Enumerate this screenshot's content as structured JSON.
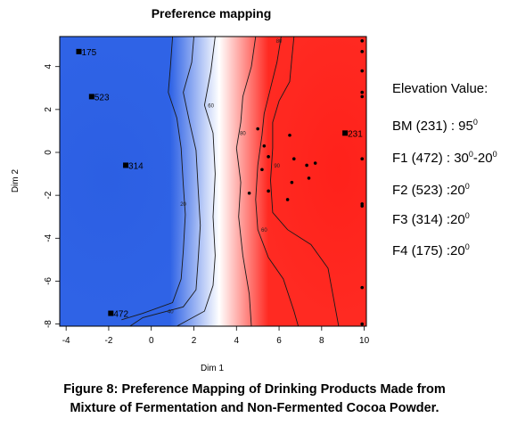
{
  "chart_data": {
    "type": "heatmap",
    "title": "Preference mapping",
    "xlabel": "Dim 1",
    "ylabel": "Dim 2",
    "xlim": [
      -4.3,
      10.1
    ],
    "ylim": [
      -8.1,
      5.4
    ],
    "x_ticks": [
      "-4",
      "-2",
      "0",
      "2",
      "4",
      "6",
      "8",
      "10"
    ],
    "x_tick_values": [
      -4,
      -2,
      0,
      2,
      4,
      6,
      8,
      10
    ],
    "y_ticks": [
      "-8",
      "-6",
      "-4",
      "-2",
      "0",
      "2",
      "4"
    ],
    "y_tick_values": [
      -8,
      -6,
      -4,
      -2,
      0,
      2,
      4
    ],
    "color_low": "#2f63e6",
    "color_mid": "#ffffff",
    "color_high": "#ff2a22",
    "contour_labels": [
      {
        "text": "20",
        "x": 1.5,
        "y": -2.5
      },
      {
        "text": "40",
        "x": 0.9,
        "y": -7.5
      },
      {
        "text": "60",
        "x": 2.8,
        "y": 2.1
      },
      {
        "text": "80",
        "x": 6.0,
        "y": 5.1
      },
      {
        "text": "80",
        "x": 4.3,
        "y": 0.8
      },
      {
        "text": "90",
        "x": 5.9,
        "y": -0.7
      },
      {
        "text": "60",
        "x": 5.3,
        "y": -3.7
      }
    ],
    "products": [
      {
        "label": "175",
        "x": -3.4,
        "y": 4.7
      },
      {
        "label": "523",
        "x": -2.8,
        "y": 2.6
      },
      {
        "label": "314",
        "x": -1.2,
        "y": -0.6
      },
      {
        "label": "472",
        "x": -1.9,
        "y": -7.5
      },
      {
        "label": "231",
        "x": 9.1,
        "y": 0.9
      }
    ],
    "consumers": [
      {
        "x": 5.0,
        "y": 1.1
      },
      {
        "x": 5.3,
        "y": 0.3
      },
      {
        "x": 5.5,
        "y": -0.2
      },
      {
        "x": 5.2,
        "y": -0.8
      },
      {
        "x": 6.5,
        "y": 0.8
      },
      {
        "x": 6.7,
        "y": -0.3
      },
      {
        "x": 7.3,
        "y": -0.6
      },
      {
        "x": 7.7,
        "y": -0.5
      },
      {
        "x": 7.4,
        "y": -1.2
      },
      {
        "x": 6.6,
        "y": -1.4
      },
      {
        "x": 4.6,
        "y": -1.9
      },
      {
        "x": 5.5,
        "y": -1.8
      },
      {
        "x": 6.4,
        "y": -2.2
      },
      {
        "x": 9.9,
        "y": 5.2
      },
      {
        "x": 9.9,
        "y": 4.7
      },
      {
        "x": 9.9,
        "y": 3.8
      },
      {
        "x": 9.9,
        "y": 2.8
      },
      {
        "x": 9.9,
        "y": 2.6
      },
      {
        "x": 9.9,
        "y": -0.3
      },
      {
        "x": 9.9,
        "y": -2.4
      },
      {
        "x": 9.9,
        "y": -2.5
      },
      {
        "x": 9.9,
        "y": -6.3
      },
      {
        "x": 9.9,
        "y": -8.0
      }
    ],
    "contours": [
      [
        [
          1.0,
          5.4
        ],
        [
          0.9,
          4.0
        ],
        [
          0.8,
          2.8
        ],
        [
          1.2,
          1.6
        ],
        [
          1.4,
          0.2
        ],
        [
          1.5,
          -1.5
        ],
        [
          1.6,
          -2.9
        ],
        [
          1.5,
          -4.6
        ],
        [
          1.4,
          -5.9
        ],
        [
          1.0,
          -7.0
        ],
        [
          -0.4,
          -7.5
        ],
        [
          -1.4,
          -7.8
        ]
      ],
      [
        [
          2.0,
          5.4
        ],
        [
          1.9,
          4.2
        ],
        [
          1.5,
          2.8
        ],
        [
          1.8,
          1.4
        ],
        [
          2.1,
          0.1
        ],
        [
          2.2,
          -1.7
        ],
        [
          2.3,
          -3.4
        ],
        [
          2.2,
          -5.0
        ],
        [
          2.1,
          -6.4
        ],
        [
          1.5,
          -7.2
        ],
        [
          -0.4,
          -7.7
        ],
        [
          -1.0,
          -8.1
        ]
      ],
      [
        [
          3.0,
          5.4
        ],
        [
          2.8,
          3.8
        ],
        [
          2.5,
          2.2
        ],
        [
          2.9,
          0.9
        ],
        [
          3.0,
          -1.0
        ],
        [
          2.9,
          -3.0
        ],
        [
          3.0,
          -4.8
        ],
        [
          2.9,
          -6.2
        ],
        [
          2.5,
          -7.4
        ],
        [
          1.2,
          -8.1
        ]
      ],
      [
        [
          4.9,
          5.4
        ],
        [
          4.7,
          4.0
        ],
        [
          4.3,
          2.6
        ],
        [
          4.2,
          1.4
        ],
        [
          4.0,
          0.2
        ],
        [
          4.2,
          -1.4
        ],
        [
          4.1,
          -3.0
        ],
        [
          4.3,
          -4.8
        ],
        [
          4.6,
          -6.6
        ],
        [
          4.7,
          -8.1
        ]
      ],
      [
        [
          6.1,
          5.4
        ],
        [
          5.9,
          4.2
        ],
        [
          5.6,
          3.0
        ],
        [
          5.3,
          1.8
        ],
        [
          5.2,
          0.8
        ],
        [
          5.0,
          -0.6
        ],
        [
          4.9,
          -2.2
        ],
        [
          5.0,
          -3.6
        ],
        [
          5.5,
          -4.9
        ],
        [
          6.2,
          -5.9
        ],
        [
          6.7,
          -7.4
        ],
        [
          6.9,
          -8.1
        ]
      ],
      [
        [
          6.7,
          5.4
        ],
        [
          6.6,
          4.4
        ],
        [
          6.5,
          3.3
        ],
        [
          6.0,
          2.4
        ],
        [
          5.7,
          1.4
        ],
        [
          5.7,
          0.2
        ],
        [
          5.6,
          -1.3
        ],
        [
          5.7,
          -2.8
        ],
        [
          6.4,
          -3.6
        ],
        [
          7.5,
          -4.3
        ],
        [
          8.3,
          -5.4
        ],
        [
          8.8,
          -8.1
        ]
      ]
    ]
  },
  "side_panel": {
    "heading": "Elevation Value:",
    "rows": [
      {
        "label": "BM (231) : 95",
        "sup": "0",
        "tail": ""
      },
      {
        "label": "F1 (472) : 30",
        "sup": "0",
        "tail": "-20",
        "sup2": "0"
      },
      {
        "label": "F2 (523) :20",
        "sup": "0",
        "tail": ""
      },
      {
        "label": "F3 (314) :20",
        "sup": "0",
        "tail": ""
      },
      {
        "label": "F4 (175) :20",
        "sup": "0",
        "tail": ""
      }
    ]
  },
  "caption": {
    "line1": "Figure 8: Preference Mapping of Drinking Products Made from",
    "line2": "Mixture of Fermentation and Non-Fermented Cocoa Powder."
  }
}
